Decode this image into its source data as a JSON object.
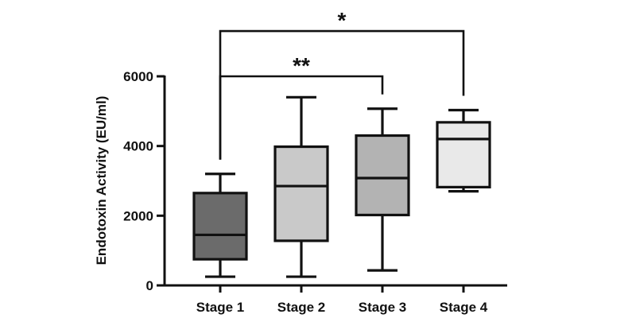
{
  "chart_data": {
    "type": "box",
    "title": "",
    "xlabel": "",
    "ylabel": "Endotoxin Activity (EU/ml)",
    "ylim": [
      0,
      6000
    ],
    "yticks": [
      0,
      2000,
      4000,
      6000
    ],
    "categories": [
      "Stage 1",
      "Stage 2",
      "Stage 3",
      "Stage 4"
    ],
    "boxes": [
      {
        "label": "Stage 1",
        "min": 250,
        "q1": 750,
        "median": 1450,
        "q3": 2650,
        "max": 3200,
        "fill": "#6b6b6b"
      },
      {
        "label": "Stage 2",
        "min": 250,
        "q1": 1280,
        "median": 2850,
        "q3": 3980,
        "max": 5400,
        "fill": "#c9c9c9"
      },
      {
        "label": "Stage 3",
        "min": 430,
        "q1": 2020,
        "median": 3080,
        "q3": 4300,
        "max": 5070,
        "fill": "#b3b3b3"
      },
      {
        "label": "Stage 4",
        "min": 2700,
        "q1": 2820,
        "median": 4200,
        "q3": 4680,
        "max": 5030,
        "fill": "#e9e9e9"
      }
    ],
    "significance": [
      {
        "from": 0,
        "to": 2,
        "label": "**",
        "level": 6000
      },
      {
        "from": 0,
        "to": 3,
        "label": "*",
        "level": 7300
      }
    ],
    "grid": false,
    "legend": "none"
  }
}
